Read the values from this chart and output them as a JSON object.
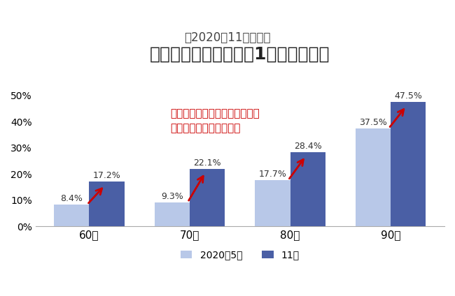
{
  "title": "高齢者の外出機会が週1回以下の割合",
  "subtitle": "（2020年11月時点）",
  "categories": [
    "60代",
    "70代",
    "80代",
    "90代"
  ],
  "values_may": [
    8.4,
    9.3,
    17.7,
    37.5
  ],
  "values_nov": [
    17.2,
    22.1,
    28.4,
    47.5
  ],
  "labels_may": [
    "8.4%",
    "9.3%",
    "17.7%",
    "37.5%"
  ],
  "labels_nov": [
    "17.2%",
    "22.1%",
    "28.4%",
    "47.5%"
  ],
  "color_may": "#b8c8e8",
  "color_nov": "#4a5fa5",
  "legend_may": "2020年5月",
  "legend_nov": "11月",
  "annotation_line1": "コロナ禍では、高齢者全年代で",
  "annotation_line2": "外出機会が減少している",
  "annotation_color": "#cc0000",
  "ylim": [
    0,
    55
  ],
  "yticks": [
    0,
    10,
    20,
    30,
    40,
    50
  ],
  "ytick_labels": [
    "0%",
    "10%",
    "20%",
    "30%",
    "40%",
    "50%"
  ],
  "background_color": "#ffffff",
  "title_fontsize": 18,
  "subtitle_fontsize": 12,
  "bar_width": 0.35,
  "arrow_color": "#cc0000"
}
